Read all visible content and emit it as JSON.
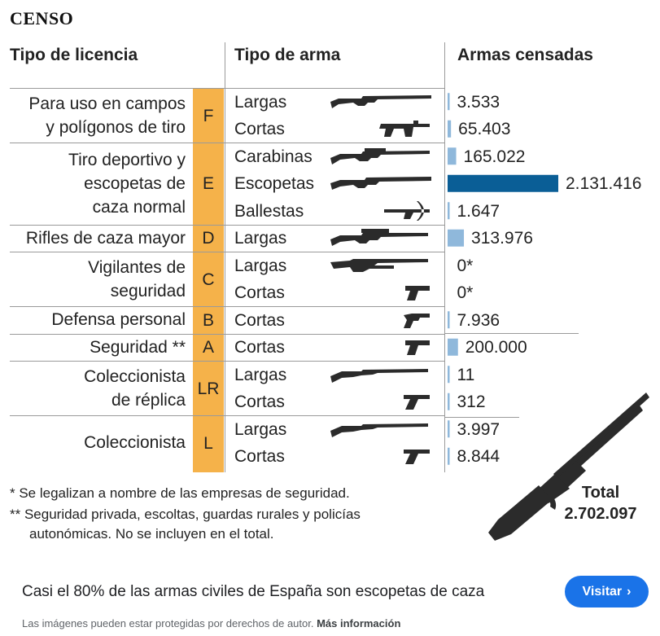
{
  "brand": "CENSO",
  "headers": {
    "licence": "Tipo de licencia",
    "weapon": "Tipo de arma",
    "count": "Armas censadas"
  },
  "rows": [
    {
      "licence_lines": [
        "Para uso en campos",
        "y polígonos de tiro"
      ],
      "code": "F",
      "items": [
        {
          "weapon": "Largas",
          "label": "3.533",
          "icon": "long-gun-icon"
        },
        {
          "weapon": "Cortas",
          "label": "65.403",
          "icon": "submachine-gun-icon"
        }
      ]
    },
    {
      "licence_lines": [
        "Tiro deportivo y",
        "escopetas de",
        "caza normal"
      ],
      "code": "E",
      "items": [
        {
          "weapon": "Carabinas",
          "label": "165.022",
          "icon": "scoped-rifle-icon"
        },
        {
          "weapon": "Escopetas",
          "label": "2.131.416",
          "icon": "shotgun-icon"
        },
        {
          "weapon": "Ballestas",
          "label": "1.647",
          "icon": "crossbow-icon"
        }
      ]
    },
    {
      "licence_lines": [
        "Rifles de caza mayor"
      ],
      "code": "D",
      "items": [
        {
          "weapon": "Largas",
          "label": "313.976",
          "icon": "hunting-rifle-icon"
        }
      ]
    },
    {
      "licence_lines": [
        "Vigilantes de",
        "seguridad"
      ],
      "code": "C",
      "items": [
        {
          "weapon": "Largas",
          "label": "0*",
          "icon": "pump-shotgun-icon"
        },
        {
          "weapon": "Cortas",
          "label": "0*",
          "icon": "pistol-icon"
        }
      ]
    },
    {
      "licence_lines": [
        "Defensa personal"
      ],
      "code": "B",
      "items": [
        {
          "weapon": "Cortas",
          "label": "7.936",
          "icon": "revolver-icon"
        }
      ]
    },
    {
      "licence_lines": [
        "Seguridad **"
      ],
      "code": "A",
      "items": [
        {
          "weapon": "Cortas",
          "label": "200.000",
          "icon": "pistol-icon"
        }
      ]
    },
    {
      "licence_lines": [
        "Coleccionista",
        "de réplica"
      ],
      "code": "LR",
      "items": [
        {
          "weapon": "Largas",
          "label": "11",
          "icon": "antique-rifle-icon"
        },
        {
          "weapon": "Cortas",
          "label": "312",
          "icon": "luger-pistol-icon"
        }
      ]
    },
    {
      "licence_lines": [
        "Coleccionista"
      ],
      "code": "L",
      "items": [
        {
          "weapon": "Largas",
          "label": "3.997",
          "icon": "antique-rifle-icon"
        },
        {
          "weapon": "Cortas",
          "label": "8.844",
          "icon": "luger-pistol-icon"
        }
      ]
    }
  ],
  "chart_data": {
    "type": "bar",
    "orientation": "horizontal",
    "categories": [
      "F Largas",
      "F Cortas",
      "E Carabinas",
      "E Escopetas",
      "E Ballestas",
      "D Largas",
      "C Largas",
      "C Cortas",
      "B Cortas",
      "A Cortas",
      "LR Largas",
      "LR Cortas",
      "L Largas",
      "L Cortas"
    ],
    "values": [
      3533,
      65403,
      165022,
      2131416,
      1647,
      313976,
      0,
      0,
      7936,
      200000,
      11,
      312,
      3997,
      8844
    ],
    "highlight_index": 3,
    "xlim": [
      0,
      2131416
    ]
  },
  "colors": {
    "bar": "#8fb8db",
    "bar_highlight": "#0a5e96",
    "licence_column": "#f5b24a",
    "icon": "#2b2b2b"
  },
  "notes": [
    "* Se legalizan a nombre de las empresas de seguridad.",
    "** Seguridad privada, escoltas, guardas rurales y policías",
    "autonómicas. No se incluyen en el total."
  ],
  "total": {
    "label": "Total",
    "value": "2.702.097"
  },
  "caption": "Casi el 80% de las armas civiles de España son escopetas de caza",
  "visit_label": "Visitar",
  "legal_text": "Las imágenes pueden estar protegidas por derechos de autor.",
  "legal_link": "Más información"
}
